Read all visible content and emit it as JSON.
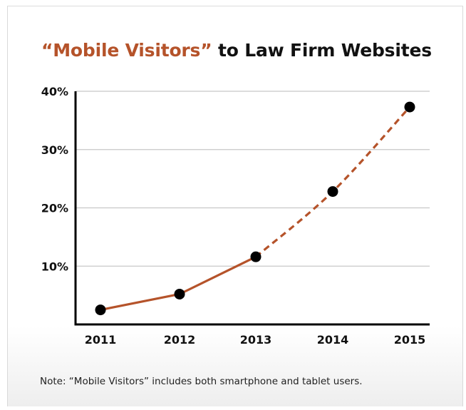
{
  "chart_data": {
    "type": "line",
    "title_highlight": "“Mobile Visitors”",
    "title_rest": " to Law Firm Websites",
    "categories": [
      "2011",
      "2012",
      "2013",
      "2014",
      "2015"
    ],
    "series": [
      {
        "values": [
          2.5,
          5.2,
          11.6,
          22.8,
          37.3
        ],
        "solid_until_index": 2,
        "color": "#b5532a"
      }
    ],
    "y_ticks": [
      {
        "value": 10,
        "label": "10%"
      },
      {
        "value": 20,
        "label": "20%"
      },
      {
        "value": 30,
        "label": "30%"
      },
      {
        "value": 40,
        "label": "40%"
      }
    ],
    "ylim": [
      0,
      40
    ],
    "grid": true,
    "xlabel": "",
    "ylabel": ""
  },
  "note": "Note: “Mobile Visitors” includes both smartphone and tablet users."
}
